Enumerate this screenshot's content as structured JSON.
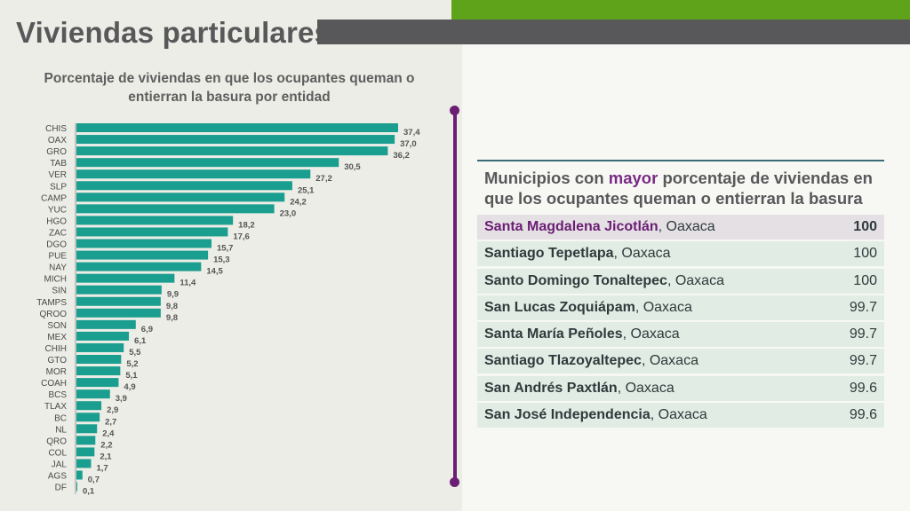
{
  "header": {
    "title": "Viviendas particulares"
  },
  "chart_data": {
    "type": "bar",
    "orientation": "horizontal",
    "title": "Porcentaje de viviendas en que los ocupantes queman o entierran la basura por entidad",
    "categories": [
      "CHIS",
      "OAX",
      "GRO",
      "TAB",
      "VER",
      "SLP",
      "CAMP",
      "YUC",
      "HGO",
      "ZAC",
      "DGO",
      "PUE",
      "NAY",
      "MICH",
      "SIN",
      "TAMPS",
      "QROO",
      "SON",
      "MEX",
      "CHIH",
      "GTO",
      "MOR",
      "COAH",
      "BCS",
      "TLAX",
      "BC",
      "NL",
      "QRO",
      "COL",
      "JAL",
      "AGS",
      "DF"
    ],
    "values": [
      37.4,
      37.0,
      36.2,
      30.5,
      27.2,
      25.1,
      24.2,
      23.0,
      18.2,
      17.6,
      15.7,
      15.3,
      14.5,
      11.4,
      9.9,
      9.8,
      9.8,
      6.9,
      6.1,
      5.5,
      5.2,
      5.1,
      4.9,
      3.9,
      2.9,
      2.7,
      2.4,
      2.2,
      2.1,
      1.7,
      0.7,
      0.1
    ],
    "labels": [
      "37,4",
      "37,0",
      "36,2",
      "30,5",
      "27,2",
      "25,1",
      "24,2",
      "23,0",
      "18,2",
      "17,6",
      "15,7",
      "15,3",
      "14,5",
      "11,4",
      "9,9",
      "9,8",
      "9,8",
      "6,9",
      "6,1",
      "5,5",
      "5,2",
      "5,1",
      "4,9",
      "3,9",
      "2,9",
      "2,7",
      "2,4",
      "2,2",
      "2,1",
      "1,7",
      "0,7",
      "0,1"
    ],
    "color": "#1a9e8f"
  },
  "municipios": {
    "heading_pre": "Municipios con ",
    "heading_accent": "mayor",
    "heading_post": " porcentaje de viviendas en que los ocupantes queman o entierran la basura",
    "rows": [
      {
        "name": "Santa Magdalena Jicotlán",
        "state": ", Oaxaca",
        "value": "100"
      },
      {
        "name": "Santiago Tepetlapa",
        "state": ", Oaxaca",
        "value": "100"
      },
      {
        "name": "Santo Domingo Tonaltepec",
        "state": ", Oaxaca",
        "value": "100"
      },
      {
        "name": "San Lucas Zoquiápam",
        "state": ", Oaxaca",
        "value": "99.7"
      },
      {
        "name": "Santa María Peñoles",
        "state": ", Oaxaca",
        "value": "99.7"
      },
      {
        "name": "Santiago Tlazoyaltepec",
        "state": ", Oaxaca",
        "value": "99.7"
      },
      {
        "name": "San Andrés Paxtlán",
        "state": ", Oaxaca",
        "value": "99.6"
      },
      {
        "name": "San José Independencia",
        "state": ", Oaxaca",
        "value": "99.6"
      }
    ]
  }
}
